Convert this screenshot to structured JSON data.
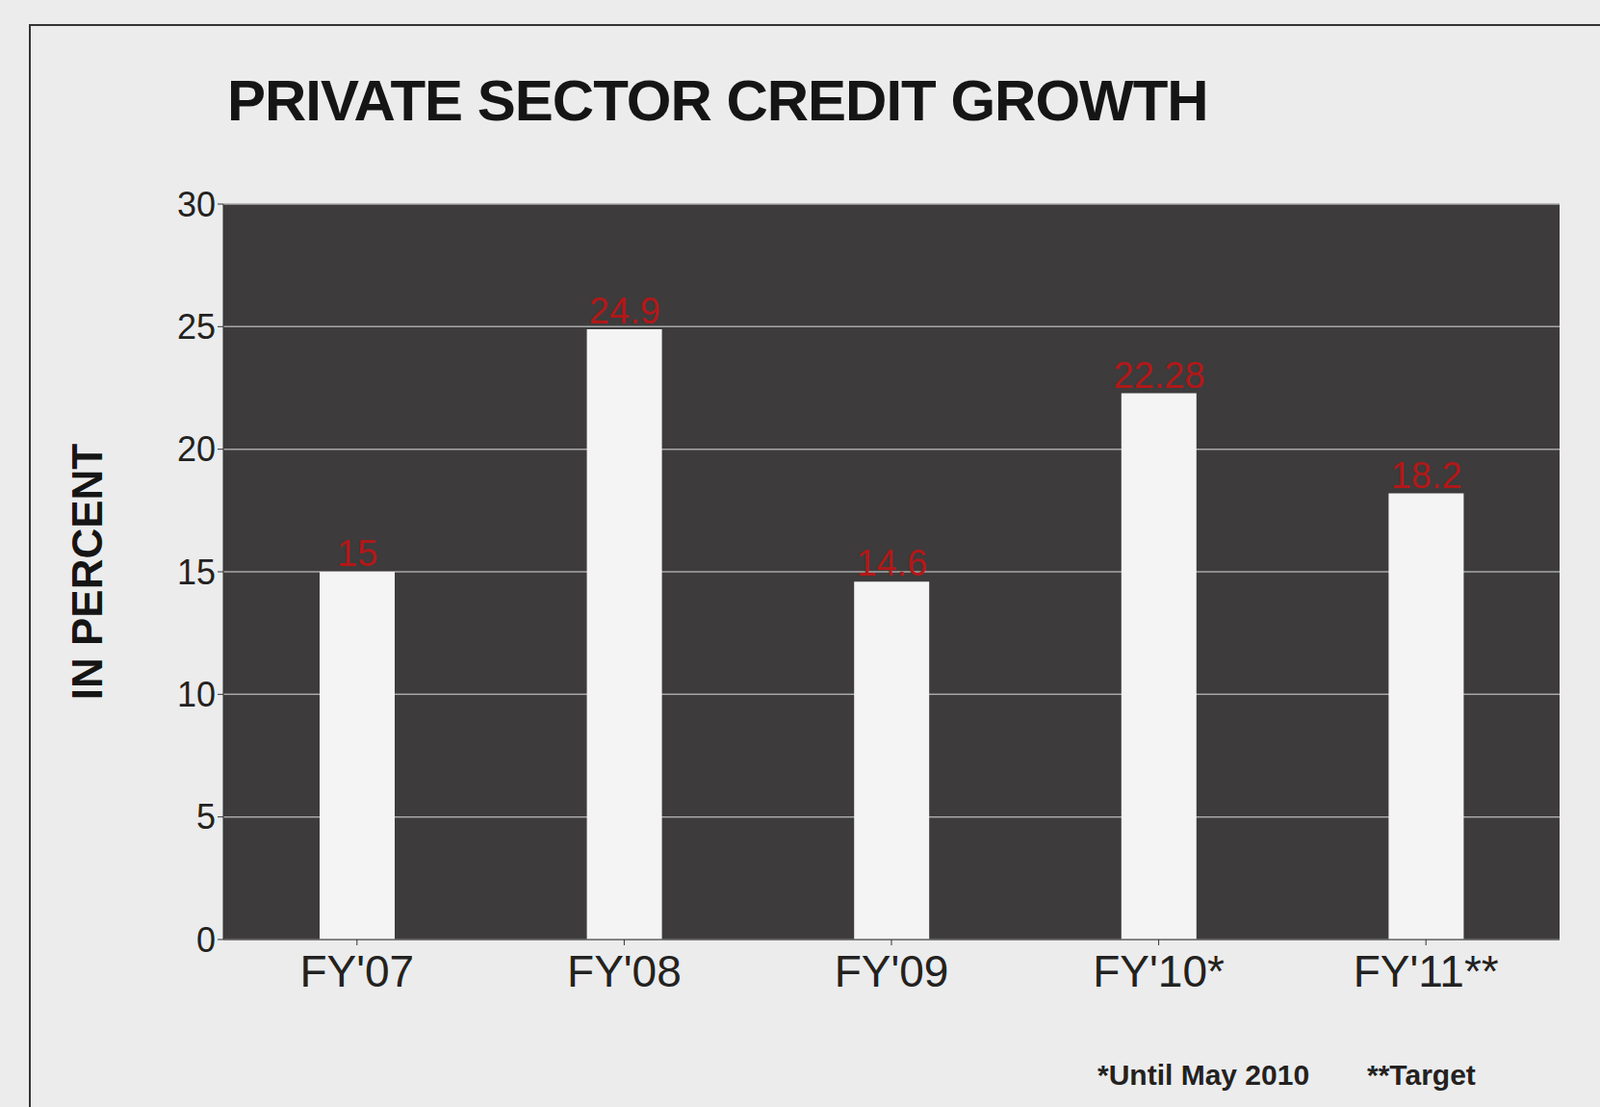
{
  "chart_data": {
    "type": "bar",
    "title": "PRIVATE SECTOR CREDIT GROWTH",
    "y_label": "IN PERCENT",
    "categories": [
      "FY'07",
      "FY'08",
      "FY'09",
      "FY'10*",
      "FY'11**"
    ],
    "values": [
      15,
      24.9,
      14.6,
      22.28,
      18.2
    ],
    "color": "#f4f4f4",
    "ylim": [
      0,
      30
    ],
    "yticks": [
      0,
      5,
      10,
      15,
      20,
      25,
      30
    ],
    "grid": true,
    "data_labels": true,
    "annotations": [
      "*Until May 2010",
      "**Target"
    ]
  }
}
